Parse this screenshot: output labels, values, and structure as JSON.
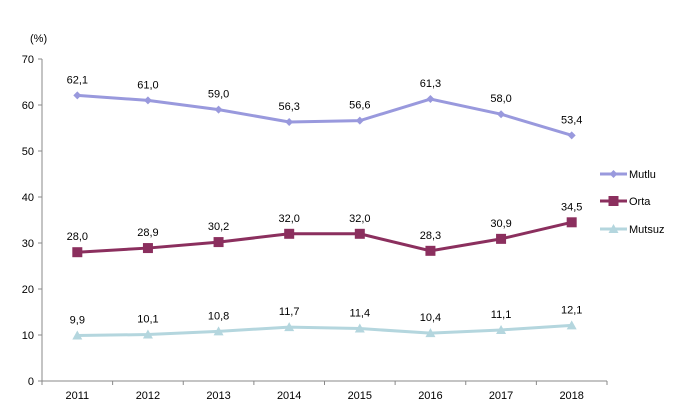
{
  "chart_data": {
    "type": "line",
    "title": "",
    "xlabel": "",
    "ylabel": "(%)",
    "ylim": [
      0,
      70
    ],
    "yticks": [
      0,
      10,
      20,
      30,
      40,
      50,
      60,
      70
    ],
    "categories": [
      "2011",
      "2012",
      "2013",
      "2014",
      "2015",
      "2016",
      "2017",
      "2018"
    ],
    "grid": false,
    "legend_position": "right",
    "series": [
      {
        "name": "Mutlu",
        "marker": "diamond",
        "color": "#9999dd",
        "values": [
          62.1,
          61.0,
          59.0,
          56.3,
          56.6,
          61.3,
          58.0,
          53.4
        ],
        "labels": [
          "62,1",
          "61,0",
          "59,0",
          "56,3",
          "56,6",
          "61,3",
          "58,0",
          "53,4"
        ]
      },
      {
        "name": "Orta",
        "marker": "square",
        "color": "#8b2f5e",
        "values": [
          28.0,
          28.9,
          30.2,
          32.0,
          32.0,
          28.3,
          30.9,
          34.5
        ],
        "labels": [
          "28,0",
          "28,9",
          "30,2",
          "32,0",
          "32,0",
          "28,3",
          "30,9",
          "34,5"
        ]
      },
      {
        "name": "Mutsuz",
        "marker": "triangle",
        "color": "#b4d6de",
        "values": [
          9.9,
          10.1,
          10.8,
          11.7,
          11.4,
          10.4,
          11.1,
          12.1
        ],
        "labels": [
          "9,9",
          "10,1",
          "10,8",
          "11,7",
          "11,4",
          "10,4",
          "11,1",
          "12,1"
        ]
      }
    ]
  }
}
